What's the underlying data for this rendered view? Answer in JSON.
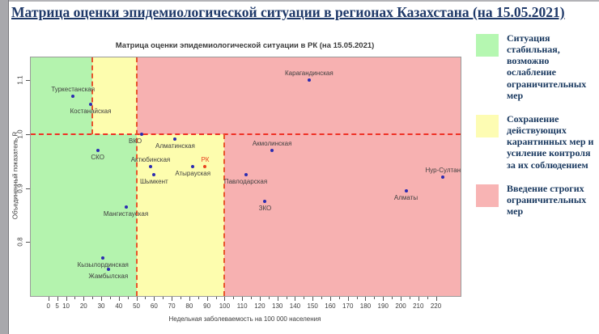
{
  "page": {
    "title": "Матрица оценки эпидемиологической ситуации в регионах Казахстана (на 15.05.2021)"
  },
  "legend": {
    "items": [
      {
        "swatch_color": "#b5f7b1",
        "text": "Ситуация стабильная, возможно ослабление ограничительных мер"
      },
      {
        "swatch_color": "#fdfcb3",
        "text": "Сохранение действующих карантинных мер и усиление контроля за их соблюдением"
      },
      {
        "swatch_color": "#f8b4b4",
        "text": "Введение строгих ограничительных мер"
      }
    ]
  },
  "chart_data": {
    "type": "scatter",
    "title": "Матрица оценки эпидемиологической ситуации в РК (на 15.05.2021)",
    "xlabel": "Недельная заболеваемость на 100 000 населения",
    "ylabel": "Объединенный показатель R",
    "xlim": [
      -10,
      234
    ],
    "ylim": [
      0.7,
      1.142
    ],
    "x_labeled_ticks": [
      0,
      5,
      10,
      20,
      30,
      40,
      50,
      60,
      70,
      80,
      90,
      100,
      110,
      120,
      130,
      140,
      150,
      160,
      170,
      180,
      190,
      200,
      210,
      220
    ],
    "x_minor_tick_step": 5,
    "y_ticks": [
      "0.8",
      "0.9",
      "1.0",
      "1.1"
    ],
    "grid": false,
    "legend_position": "right",
    "default_point_color": "#2b2bb0",
    "zone_colors": {
      "green": "#b4f3ae",
      "yellow": "#fdfdae",
      "red": "#f7b1b1"
    },
    "zones": [
      {
        "color": "green",
        "x1": -10,
        "x2": 25,
        "r1": 1.0,
        "r2": 1.142
      },
      {
        "color": "yellow",
        "x1": 25,
        "x2": 50,
        "r1": 1.0,
        "r2": 1.142
      },
      {
        "color": "red",
        "x1": 50,
        "x2": 234,
        "r1": 1.0,
        "r2": 1.142
      },
      {
        "color": "green",
        "x1": -10,
        "x2": 50,
        "r1": 0.7,
        "r2": 1.0
      },
      {
        "color": "yellow",
        "x1": 50,
        "x2": 100,
        "r1": 0.7,
        "r2": 1.0
      },
      {
        "color": "red",
        "x1": 100,
        "x2": 234,
        "r1": 0.7,
        "r2": 1.0
      }
    ],
    "reference_lines": [
      {
        "type": "h",
        "r": 1.0,
        "x1": -10,
        "x2": 234,
        "color": "#ef3125"
      },
      {
        "type": "v",
        "x": 25,
        "r1": 1.0,
        "r2": 1.142,
        "color": "#e8542b"
      },
      {
        "type": "v",
        "x": 50,
        "r1": 0.7,
        "r2": 1.142,
        "color": "#e8542b"
      },
      {
        "type": "v",
        "x": 100,
        "r1": 0.7,
        "r2": 1.0,
        "color": "#e8542b"
      }
    ],
    "points": [
      {
        "name": "Туркестанская",
        "x": 14,
        "y": 1.07,
        "label_pos": "above"
      },
      {
        "name": "Костанайская",
        "x": 24,
        "y": 1.055,
        "label_pos": "below"
      },
      {
        "name": "Карагандинская",
        "x": 148,
        "y": 1.1,
        "label_pos": "above"
      },
      {
        "name": "СКО",
        "x": 28,
        "y": 0.97,
        "label_pos": "below"
      },
      {
        "name": "ВКО",
        "x": 53,
        "y": 1.0,
        "label_pos": "below",
        "dx": -8
      },
      {
        "name": "Алматинская",
        "x": 72,
        "y": 0.99,
        "label_pos": "below"
      },
      {
        "name": "Актюбинская",
        "x": 58,
        "y": 0.94,
        "label_pos": "above"
      },
      {
        "name": "Шымкент",
        "x": 60,
        "y": 0.925,
        "label_pos": "below"
      },
      {
        "name": "Атырауская",
        "x": 82,
        "y": 0.94,
        "label_pos": "below"
      },
      {
        "name": "РК",
        "x": 89,
        "y": 0.94,
        "label_pos": "above",
        "color": "#e8411f"
      },
      {
        "name": "Акмолинская",
        "x": 127,
        "y": 0.97,
        "label_pos": "above"
      },
      {
        "name": "Павлодарская",
        "x": 112,
        "y": 0.925,
        "label_pos": "below"
      },
      {
        "name": "ЗКО",
        "x": 123,
        "y": 0.875,
        "label_pos": "below"
      },
      {
        "name": "Мангистауская",
        "x": 44,
        "y": 0.865,
        "label_pos": "below"
      },
      {
        "name": "Кызылординская",
        "x": 31,
        "y": 0.77,
        "label_pos": "below"
      },
      {
        "name": "Жамбылская",
        "x": 34,
        "y": 0.75,
        "label_pos": "below"
      },
      {
        "name": "Алматы",
        "x": 203,
        "y": 0.895,
        "label_pos": "below"
      },
      {
        "name": "Нур-Султан",
        "x": 224,
        "y": 0.92,
        "label_pos": "above"
      }
    ]
  }
}
